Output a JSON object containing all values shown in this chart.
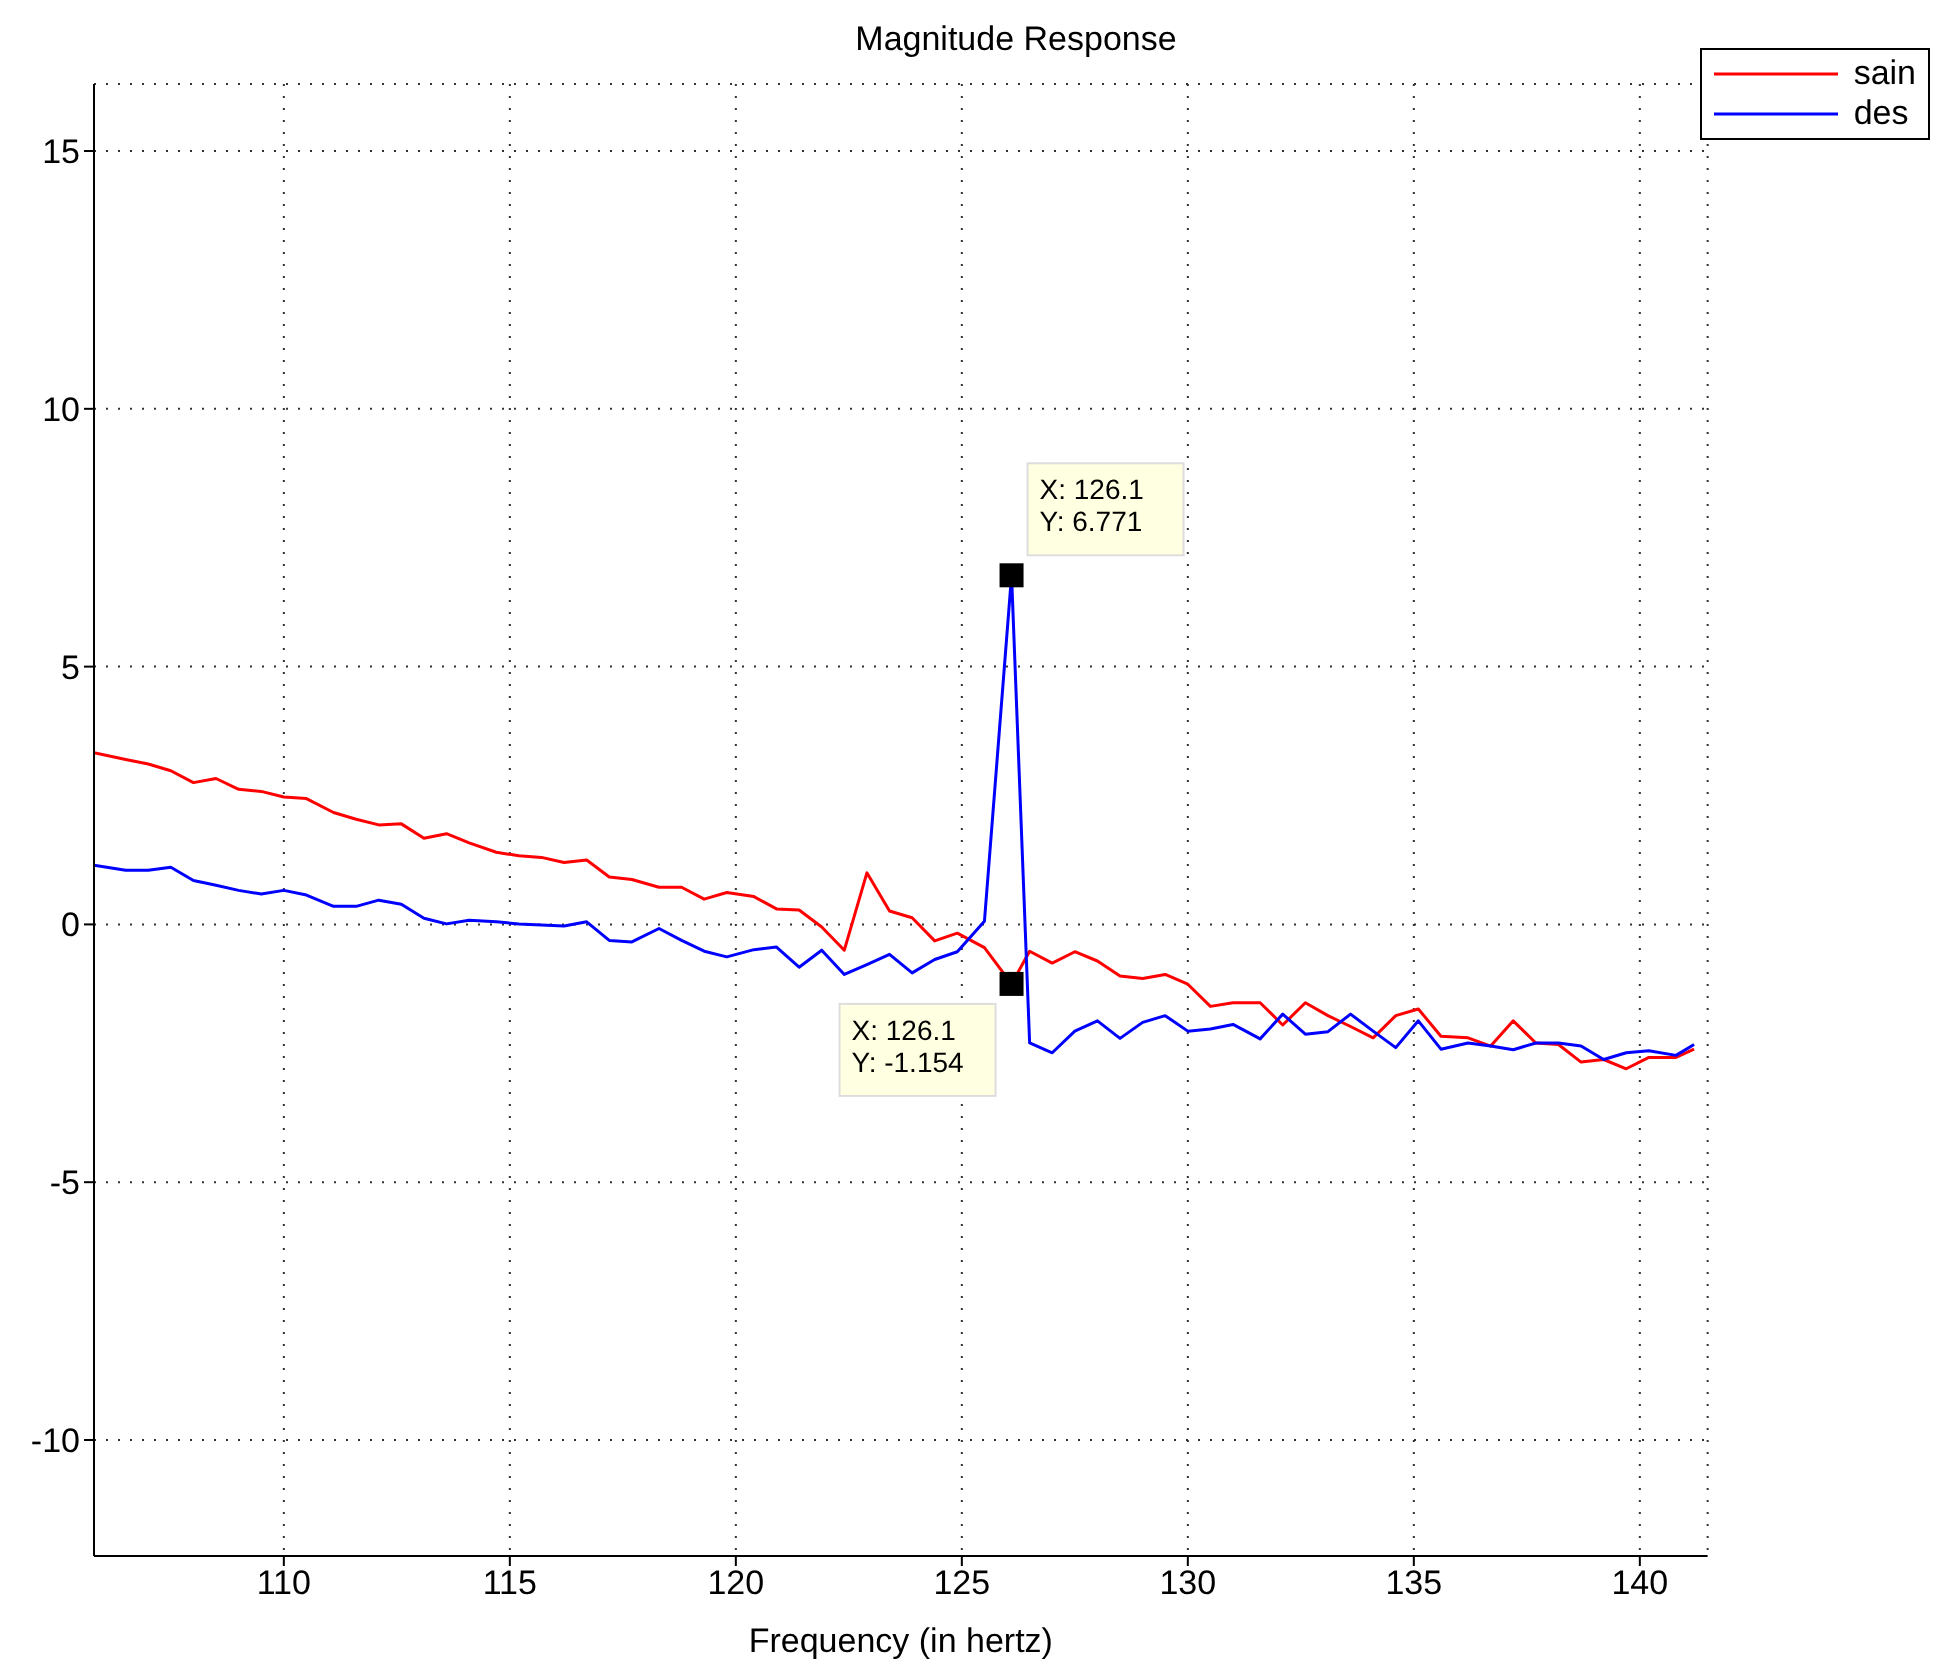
{
  "chart_data": {
    "type": "line",
    "title": "Magnitude Response",
    "xlabel": "Frequency (in hertz)",
    "x": [
      105.8,
      106.5,
      107,
      107.5,
      108,
      108.5,
      109,
      109.5,
      110,
      110.5,
      111.1,
      111.6,
      112.1,
      112.6,
      113.1,
      113.6,
      114.1,
      114.7,
      115.2,
      115.7,
      116.2,
      116.7,
      117.2,
      117.7,
      118.3,
      118.8,
      119.3,
      119.8,
      120.4,
      120.9,
      121.4,
      121.9,
      122.4,
      122.9,
      123.4,
      123.9,
      124.4,
      124.9,
      125.5,
      126.1,
      126.5,
      127,
      127.5,
      128,
      128.5,
      129,
      129.5,
      130,
      130.5,
      131,
      131.6,
      132.1,
      132.6,
      133.1,
      133.6,
      134.1,
      134.6,
      135.1,
      135.6,
      136.2,
      136.7,
      137.2,
      137.7,
      138.2,
      138.7,
      139.2,
      139.7,
      140.2,
      140.8,
      141.2
    ],
    "series": [
      {
        "name": "sain",
        "color": "#ff0000",
        "values": [
          3.33,
          3.2,
          3.11,
          2.98,
          2.75,
          2.83,
          2.62,
          2.58,
          2.47,
          2.44,
          2.17,
          2.04,
          1.93,
          1.95,
          1.67,
          1.76,
          1.58,
          1.4,
          1.33,
          1.3,
          1.2,
          1.25,
          0.92,
          0.87,
          0.72,
          0.72,
          0.49,
          0.62,
          0.54,
          0.3,
          0.28,
          -0.05,
          -0.5,
          1.0,
          0.26,
          0.13,
          -0.32,
          -0.17,
          -0.45,
          -1.154,
          -0.52,
          -0.75,
          -0.53,
          -0.71,
          -1.0,
          -1.05,
          -0.97,
          -1.16,
          -1.59,
          -1.52,
          -1.52,
          -1.95,
          -1.52,
          -1.77,
          -1.98,
          -2.2,
          -1.77,
          -1.64,
          -2.17,
          -2.2,
          -2.36,
          -1.87,
          -2.3,
          -2.33,
          -2.67,
          -2.62,
          -2.8,
          -2.58,
          -2.58,
          -2.42
        ]
      },
      {
        "name": "des",
        "color": "#0000ff",
        "values": [
          1.15,
          1.05,
          1.05,
          1.11,
          0.85,
          0.76,
          0.66,
          0.59,
          0.66,
          0.57,
          0.35,
          0.35,
          0.47,
          0.39,
          0.12,
          0.01,
          0.08,
          0.05,
          0.01,
          -0.01,
          -0.03,
          0.05,
          -0.31,
          -0.34,
          -0.08,
          -0.31,
          -0.52,
          -0.63,
          -0.49,
          -0.44,
          -0.83,
          -0.5,
          -0.97,
          -0.78,
          -0.58,
          -0.94,
          -0.68,
          -0.53,
          0.06,
          6.771,
          -2.3,
          -2.49,
          -2.07,
          -1.87,
          -2.21,
          -1.9,
          -1.77,
          -2.07,
          -2.03,
          -1.94,
          -2.22,
          -1.74,
          -2.13,
          -2.08,
          -1.74,
          -2.07,
          -2.39,
          -1.87,
          -2.42,
          -2.3,
          -2.36,
          -2.43,
          -2.3,
          -2.3,
          -2.36,
          -2.62,
          -2.49,
          -2.45,
          -2.54,
          -2.33
        ]
      }
    ],
    "xlim": [
      105.8,
      141.5
    ],
    "xticks": [
      110,
      115,
      120,
      125,
      130,
      135,
      140
    ],
    "ylim": [
      -12.25,
      16.3
    ],
    "yticks": [
      -10,
      -5,
      0,
      5,
      10,
      15
    ],
    "annotations": [
      {
        "text": "X: 126.1\nY: 6.771",
        "x": 126.1,
        "y": 6.771
      },
      {
        "text": "X: 126.1\nY: -1.154",
        "x": 126.1,
        "y": -1.154
      }
    ],
    "grid": true,
    "legend": "top right",
    "marker": "none",
    "line_style": "solid"
  }
}
